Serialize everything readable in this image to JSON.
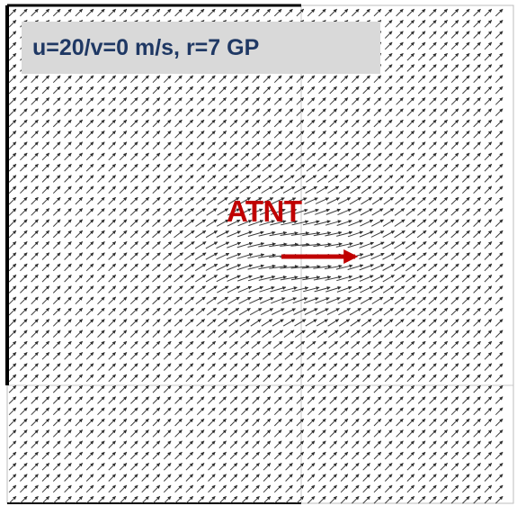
{
  "caption": "u=20/v=0 m/s, r=7 GP",
  "target_label": "ATNT",
  "colors": {
    "vector": "#3a3a3a",
    "grid": "#c8c8c8",
    "target_arrow": "#c00000",
    "caption_bg": "#d9d9d9",
    "caption_text": "#1f3864"
  }
}
